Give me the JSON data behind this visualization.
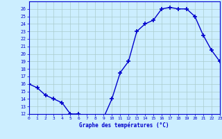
{
  "hours": [
    0,
    1,
    2,
    3,
    4,
    5,
    6,
    7,
    8,
    9,
    10,
    11,
    12,
    13,
    14,
    15,
    16,
    17,
    18,
    19,
    20,
    21,
    22,
    23
  ],
  "temperatures": [
    16,
    15.5,
    14.5,
    14,
    13.5,
    12,
    12,
    11.5,
    11.5,
    11.5,
    14,
    17.5,
    19,
    23,
    24,
    24.5,
    26,
    26.2,
    26,
    26,
    25,
    22.5,
    20.5,
    19
  ],
  "line_color": "#0000cc",
  "marker": "+",
  "bg_color": "#cceeff",
  "grid_color": "#aacccc",
  "axis_color": "#0000cc",
  "xlabel": "Graphe des températures (°C)",
  "ylim_min": 12,
  "ylim_max": 27,
  "xlim_min": 0,
  "xlim_max": 23
}
